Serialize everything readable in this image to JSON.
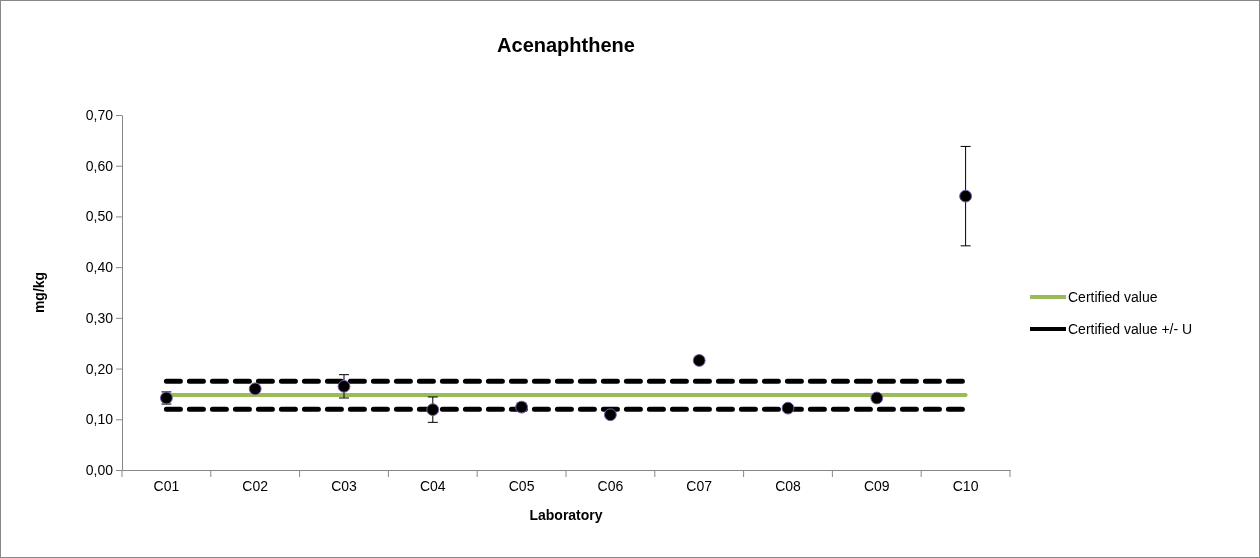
{
  "chart_data": {
    "type": "scatter",
    "title": "Acenaphthene",
    "xlabel": "Laboratory",
    "ylabel": "mg/kg",
    "categories": [
      "C01",
      "C02",
      "C03",
      "C04",
      "C05",
      "C06",
      "C07",
      "C08",
      "C09",
      "C10"
    ],
    "ylim": [
      0,
      0.7
    ],
    "yticks": [
      {
        "value": 0,
        "label": "0,00"
      },
      {
        "value": 0.1,
        "label": "0,10"
      },
      {
        "value": 0.2,
        "label": "0,20"
      },
      {
        "value": 0.3,
        "label": "0,30"
      },
      {
        "value": 0.4,
        "label": "0,40"
      },
      {
        "value": 0.5,
        "label": "0,50"
      },
      {
        "value": 0.6,
        "label": "0,60"
      },
      {
        "value": 0.7,
        "label": "0,70"
      }
    ],
    "grid": false,
    "legend": "right",
    "series": [
      {
        "type": "line",
        "name": "Certified value",
        "color": "#9bbb59",
        "line_style": "solid",
        "marker": "none",
        "values": [
          0.148,
          0.148,
          0.148,
          0.148,
          0.148,
          0.148,
          0.148,
          0.148,
          0.148,
          0.148
        ]
      },
      {
        "type": "line",
        "name": "Certified value +/- U",
        "color": "#000000",
        "line_style": "dashed",
        "marker": "none",
        "values": [
          0.175,
          0.175,
          0.175,
          0.175,
          0.175,
          0.175,
          0.175,
          0.175,
          0.175,
          0.175
        ]
      },
      {
        "type": "line",
        "color": "#000000",
        "line_style": "dashed",
        "marker": "none",
        "values": [
          0.12,
          0.12,
          0.12,
          0.12,
          0.12,
          0.12,
          0.12,
          0.12,
          0.12,
          0.12
        ]
      },
      {
        "color": "#000000",
        "marker": "circle",
        "values": [
          0.142,
          0.16,
          0.165,
          0.119,
          0.124,
          0.109,
          0.216,
          0.122,
          0.142,
          0.54
        ],
        "errors": [
          0.012,
          null,
          0.023,
          0.025,
          0.008,
          null,
          null,
          null,
          null,
          0.098
        ]
      }
    ]
  }
}
